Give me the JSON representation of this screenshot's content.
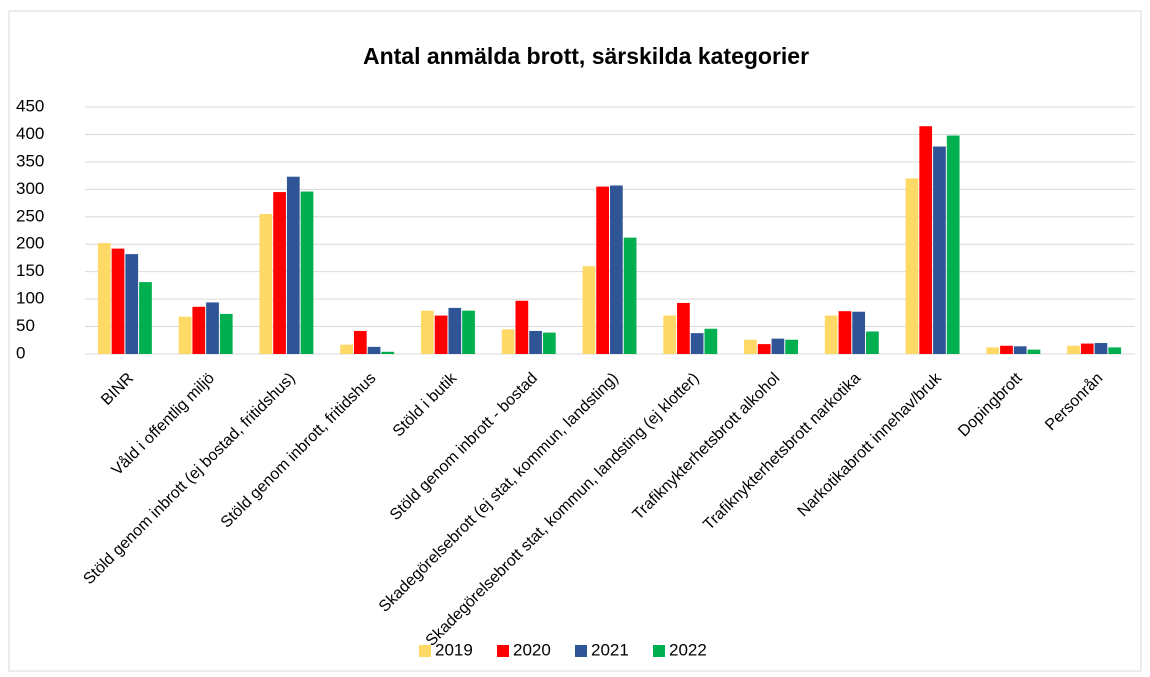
{
  "chart_data": {
    "type": "bar",
    "title": "Antal anmälda brott, särskilda kategorier",
    "categories": [
      "BINR",
      "Våld i offentlig miljö",
      "Stöld genom inbrott (ej bostad, fritidshus)",
      "Stöld genom inbrott, fritidshus",
      "Stöld i butik",
      "Stöld genom inbrott - bostad",
      "Skadegörelsebrott (ej stat, kommun, landsting)",
      "Skadegörelsebrott stat, kommun, landsting (ej klotter)",
      "Trafiknykterhetsbrott alkohol",
      "Trafiknykterhetsbrott narkotika",
      "Narkotikabrott innehav/bruk",
      "Dopingbrott",
      "Personrån"
    ],
    "series": [
      {
        "name": "2019",
        "color": "#ffd966",
        "values": [
          202,
          68,
          255,
          17,
          79,
          45,
          160,
          70,
          26,
          70,
          320,
          12,
          15
        ]
      },
      {
        "name": "2020",
        "color": "#ff0000",
        "values": [
          192,
          86,
          295,
          42,
          70,
          97,
          305,
          93,
          18,
          78,
          415,
          15,
          19
        ]
      },
      {
        "name": "2021",
        "color": "#2f5597",
        "values": [
          182,
          94,
          323,
          13,
          84,
          42,
          307,
          38,
          28,
          77,
          378,
          14,
          20
        ]
      },
      {
        "name": "2022",
        "color": "#00b050",
        "values": [
          131,
          73,
          296,
          4,
          79,
          39,
          212,
          46,
          26,
          41,
          398,
          8,
          12
        ]
      }
    ],
    "ylim": [
      0,
      450
    ],
    "yticks": [
      0,
      50,
      100,
      150,
      200,
      250,
      300,
      350,
      400,
      450
    ],
    "grid": true,
    "legend": "bottom"
  }
}
